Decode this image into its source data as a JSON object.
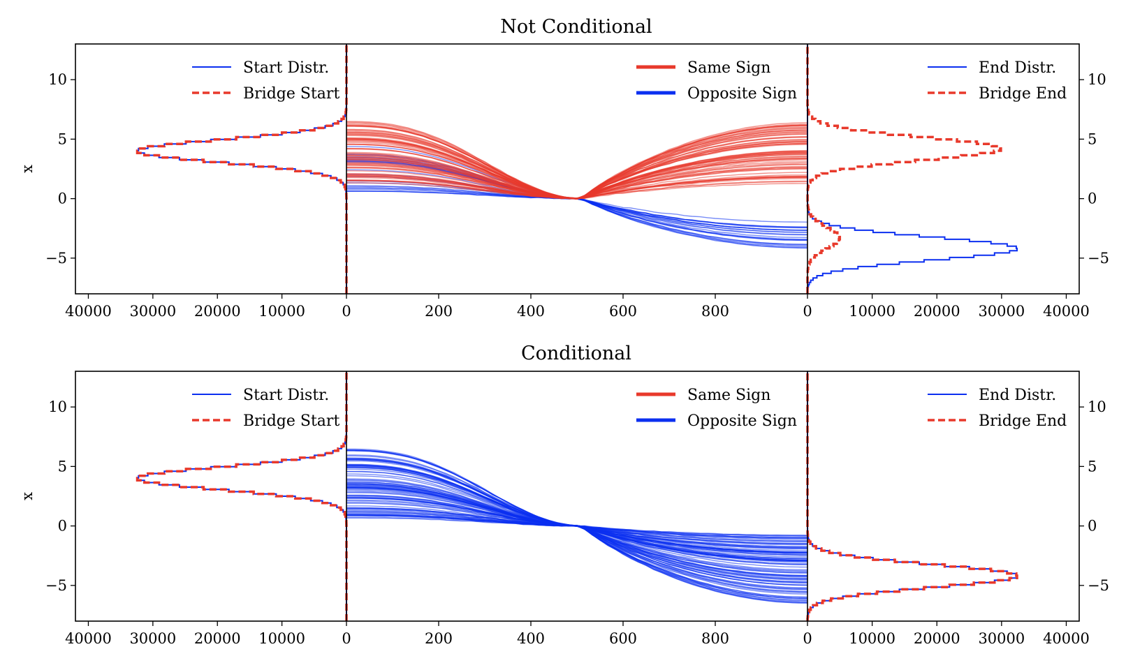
{
  "colors": {
    "red": "#e8392b",
    "blue": "#0b2ff0",
    "axis": "#000000"
  },
  "chart_data": [
    {
      "type": "line",
      "title": "Not Conditional",
      "ylabel": "x",
      "ylim": [
        -8,
        13
      ],
      "yticks": [
        "−5",
        "0",
        "5",
        "10"
      ],
      "left_hist": {
        "xlim": [
          42000,
          0
        ],
        "xticks": [
          "40000",
          "30000",
          "20000",
          "10000",
          "0"
        ],
        "legend_location": "upper right",
        "legend": [
          "Start Distr.",
          "Bridge Start"
        ],
        "series": [
          {
            "name": "Start Distr.",
            "style": "solid-blue",
            "mode": 4.0,
            "std": 0.95,
            "peak": 32500,
            "weight": 1.0
          },
          {
            "name": "Bridge Start",
            "style": "dashed-red",
            "mode": 4.0,
            "std": 0.95,
            "peak": 32500,
            "weight": 1.0
          }
        ]
      },
      "paths": {
        "xlim": [
          0,
          1000
        ],
        "xticks": [
          "0",
          "200",
          "400",
          "600",
          "800"
        ],
        "midpoint": [
          510,
          0
        ],
        "legend_location": "upper right",
        "legend": [
          "Same Sign",
          "Opposite Sign"
        ],
        "same_sign": {
          "name": "Same Sign",
          "start_range": [
            1.3,
            6.5
          ],
          "end_range": [
            1.2,
            6.4
          ],
          "count": 70
        },
        "opposite_sign": {
          "name": "Opposite Sign",
          "start_range": [
            0.6,
            4.5
          ],
          "end_range": [
            -4.2,
            -1.6
          ],
          "count": 24
        }
      },
      "right_hist": {
        "xlim": [
          0,
          42000
        ],
        "xticks": [
          "0",
          "10000",
          "20000",
          "30000",
          "40000"
        ],
        "legend_location": "upper right",
        "legend": [
          "End Distr.",
          "Bridge End"
        ],
        "series": [
          {
            "name": "End Distr.",
            "style": "solid-blue",
            "mode": -4.2,
            "std": 0.95,
            "peak": 32500,
            "weight": 1.0
          },
          {
            "name": "Bridge End",
            "style": "dashed-red",
            "mode": 4.2,
            "std": 0.95,
            "peak": 30000,
            "weight": 1.0,
            "secondary": {
              "mode": -3.3,
              "std": 0.9,
              "peak": 5000
            }
          }
        ]
      }
    },
    {
      "type": "line",
      "title": "Conditional",
      "ylabel": "x",
      "ylim": [
        -8,
        13
      ],
      "yticks": [
        "−5",
        "0",
        "5",
        "10"
      ],
      "left_hist": {
        "xlim": [
          42000,
          0
        ],
        "xticks": [
          "40000",
          "30000",
          "20000",
          "10000",
          "0"
        ],
        "legend_location": "upper right",
        "legend": [
          "Start Distr.",
          "Bridge Start"
        ],
        "series": [
          {
            "name": "Start Distr.",
            "style": "solid-blue",
            "mode": 4.0,
            "std": 0.95,
            "peak": 32500,
            "weight": 1.0
          },
          {
            "name": "Bridge Start",
            "style": "dashed-red",
            "mode": 4.0,
            "std": 0.95,
            "peak": 32500,
            "weight": 1.0
          }
        ]
      },
      "paths": {
        "xlim": [
          0,
          1000
        ],
        "xticks": [
          "0",
          "200",
          "400",
          "600",
          "800"
        ],
        "midpoint": [
          510,
          0
        ],
        "legend_location": "upper right",
        "legend": [
          "Same Sign",
          "Opposite Sign"
        ],
        "same_sign": {
          "name": "Same Sign",
          "start_range": [
            0,
            0
          ],
          "end_range": [
            0,
            0
          ],
          "count": 0
        },
        "opposite_sign": {
          "name": "Opposite Sign",
          "start_range": [
            0.6,
            6.5
          ],
          "end_range": [
            -6.6,
            -0.7
          ],
          "count": 90
        }
      },
      "right_hist": {
        "xlim": [
          0,
          42000
        ],
        "xticks": [
          "0",
          "10000",
          "20000",
          "30000",
          "40000"
        ],
        "legend_location": "upper right",
        "legend": [
          "End Distr.",
          "Bridge End"
        ],
        "series": [
          {
            "name": "End Distr.",
            "style": "solid-blue",
            "mode": -4.2,
            "std": 0.95,
            "peak": 32500,
            "weight": 1.0
          },
          {
            "name": "Bridge End",
            "style": "dashed-red",
            "mode": -4.2,
            "std": 0.95,
            "peak": 32500,
            "weight": 1.0
          }
        ]
      }
    }
  ]
}
